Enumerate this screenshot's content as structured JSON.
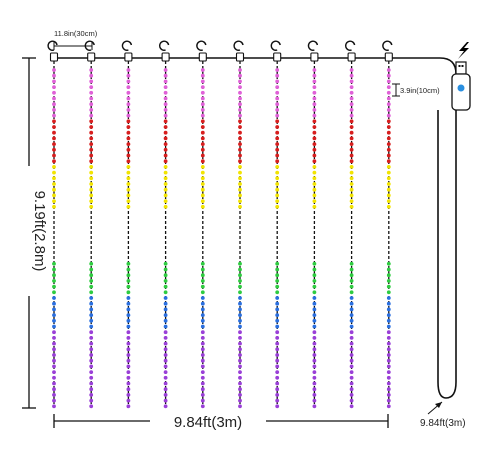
{
  "labels": {
    "strand_spacing": "11.8in(30cm)",
    "bulb_spacing": "3.9in(10cm)",
    "height": "9.19ft(2.8m)",
    "width": "9.84ft(3m)",
    "cable_length": "9.84ft(3m)"
  },
  "strand_count": 10,
  "colors": {
    "magenta": "#e060d8",
    "red": "#d81e1e",
    "yellow": "#f2e400",
    "green": "#2ecc40",
    "blue": "#2a6fe0",
    "purple": "#9a3fd8",
    "wire": "#111111",
    "usb_dot": "#2a8fe0",
    "lightning": "#000000"
  },
  "icons": {
    "hook": "hook-icon",
    "usb": "usb-plug-icon",
    "power": "lightning-icon"
  }
}
